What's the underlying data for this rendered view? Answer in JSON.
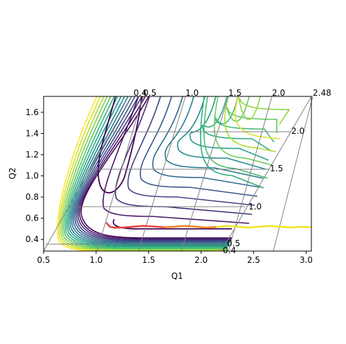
{
  "chart_data": {
    "type": "contour",
    "xlabel": "Q1",
    "ylabel": "Q2",
    "xlim": [
      0.5,
      3.05
    ],
    "ylim": [
      0.29,
      1.75
    ],
    "x_ticks": [
      "0.5",
      "1.0",
      "1.5",
      "2.0",
      "2.5",
      "3.0"
    ],
    "y_ticks": [
      "0.4",
      "0.6",
      "0.8",
      "1.0",
      "1.2",
      "1.4",
      "1.6"
    ],
    "x_tick_values": [
      0.5,
      1.0,
      1.5,
      2.0,
      2.5,
      3.0
    ],
    "y_tick_values": [
      0.4,
      0.6,
      0.8,
      1.0,
      1.2,
      1.4,
      1.6
    ],
    "overlay_grid": {
      "top_labels": [
        "0.4",
        "0.5",
        "1.0",
        "1.5",
        "2.0",
        "2.48"
      ],
      "right_labels": [
        "0.4",
        "0.5",
        "1.0",
        "1.5",
        "2.0",
        "2.48"
      ]
    },
    "colormap": "viridis",
    "contour_levels": 16,
    "trajectory": {
      "color_start": "#e8413a",
      "color_mid": "#f6801f",
      "color_end": "#f2e41f",
      "points": [
        [
          1.1,
          0.555
        ],
        [
          1.13,
          0.52
        ],
        [
          1.18,
          0.51
        ],
        [
          1.25,
          0.512
        ],
        [
          1.35,
          0.52
        ],
        [
          1.45,
          0.528
        ],
        [
          1.55,
          0.522
        ],
        [
          1.65,
          0.515
        ],
        [
          1.75,
          0.52
        ],
        [
          1.85,
          0.527
        ],
        [
          1.95,
          0.52
        ],
        [
          2.05,
          0.512
        ],
        [
          2.15,
          0.518
        ],
        [
          2.25,
          0.527
        ],
        [
          2.35,
          0.52
        ],
        [
          2.45,
          0.512
        ],
        [
          2.55,
          0.52
        ],
        [
          2.65,
          0.527
        ],
        [
          2.75,
          0.52
        ],
        [
          2.85,
          0.512
        ],
        [
          2.95,
          0.518
        ],
        [
          3.05,
          0.515
        ]
      ]
    }
  }
}
